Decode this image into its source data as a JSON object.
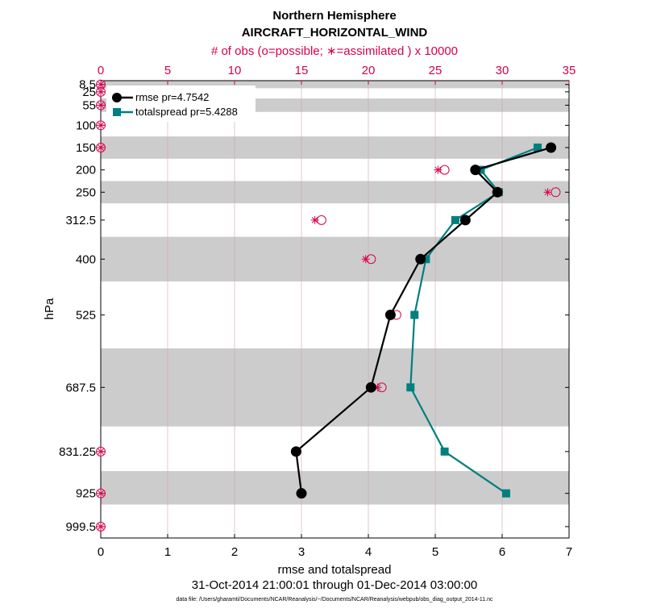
{
  "chart_data": {
    "type": "line",
    "title": "Northern Hemisphere",
    "subtitle": "AIRCRAFT_HORIZONTAL_WIND",
    "top_axis_label": "# of obs (o=possible; ∗=assimilated ) x 10000",
    "xlabel": "rmse and totalspread",
    "ylabel": "hPa",
    "date_range": "31-Oct-2014 21:00:01 through 01-Dec-2014 03:00:00",
    "footnote": "data file: /Users/gharamti/Documents/NCAR/Reanalysis/~/Documents/NCAR/Reanalysis/webpub/obs_diag_output_2014-11.nc",
    "xlim": [
      0,
      7
    ],
    "xticks": [
      "0",
      "1",
      "2",
      "3",
      "4",
      "5",
      "6",
      "7"
    ],
    "top_xlim": [
      0,
      35
    ],
    "top_xticks": [
      "0",
      "5",
      "10",
      "15",
      "20",
      "25",
      "30",
      "35"
    ],
    "ylim": [
      1025,
      0
    ],
    "levels": [
      "8.5",
      "25",
      "55",
      "100",
      "150",
      "200",
      "250",
      "312.5",
      "400",
      "525",
      "687.5",
      "831.25",
      "925",
      "999.5"
    ],
    "level_values": [
      8.5,
      25,
      55,
      100,
      150,
      200,
      250,
      312.5,
      400,
      525,
      687.5,
      831.25,
      925,
      999.5
    ],
    "shaded_bands": [
      [
        0,
        17
      ],
      [
        40,
        70
      ],
      [
        125,
        175
      ],
      [
        225,
        275
      ],
      [
        350,
        450
      ],
      [
        600,
        775
      ],
      [
        875,
        950
      ]
    ],
    "grid": "vertical",
    "legend_position": "top-left",
    "series": [
      {
        "name": "rmse",
        "legend": "rmse pr=4.7542",
        "color": "#000000",
        "marker": "circle",
        "levels": [
          150,
          200,
          250,
          312.5,
          400,
          525,
          687.5,
          831.25,
          925
        ],
        "values": [
          6.73,
          5.6,
          5.93,
          5.45,
          4.78,
          4.33,
          4.04,
          2.92,
          3.0
        ]
      },
      {
        "name": "totalspread",
        "legend": "totalspread pr=5.4288",
        "color": "#007f7f",
        "marker": "square",
        "levels": [
          150,
          200,
          250,
          312.5,
          400,
          525,
          687.5,
          831.25,
          925
        ],
        "values": [
          6.53,
          5.68,
          5.95,
          5.3,
          4.86,
          4.69,
          4.63,
          5.14,
          6.06
        ]
      }
    ],
    "obs_possible": {
      "levels": [
        8.5,
        25,
        55,
        100,
        150,
        200,
        250,
        312.5,
        400,
        525,
        687.5,
        831.25,
        925,
        999.5
      ],
      "values": [
        0,
        0,
        0,
        0,
        0,
        25.7,
        34.0,
        16.5,
        20.2,
        22.1,
        21.0,
        0,
        0,
        0
      ]
    },
    "obs_assimilated": {
      "levels": [
        8.5,
        25,
        55,
        100,
        150,
        200,
        250,
        312.5,
        400,
        525,
        687.5,
        831.25,
        925,
        999.5
      ],
      "values": [
        0,
        0,
        0,
        0,
        0,
        25.2,
        33.4,
        16.0,
        19.8,
        21.7,
        20.7,
        0,
        0,
        0
      ]
    }
  },
  "colors": {
    "obs": "#d6004d",
    "band": "#cccccc"
  }
}
